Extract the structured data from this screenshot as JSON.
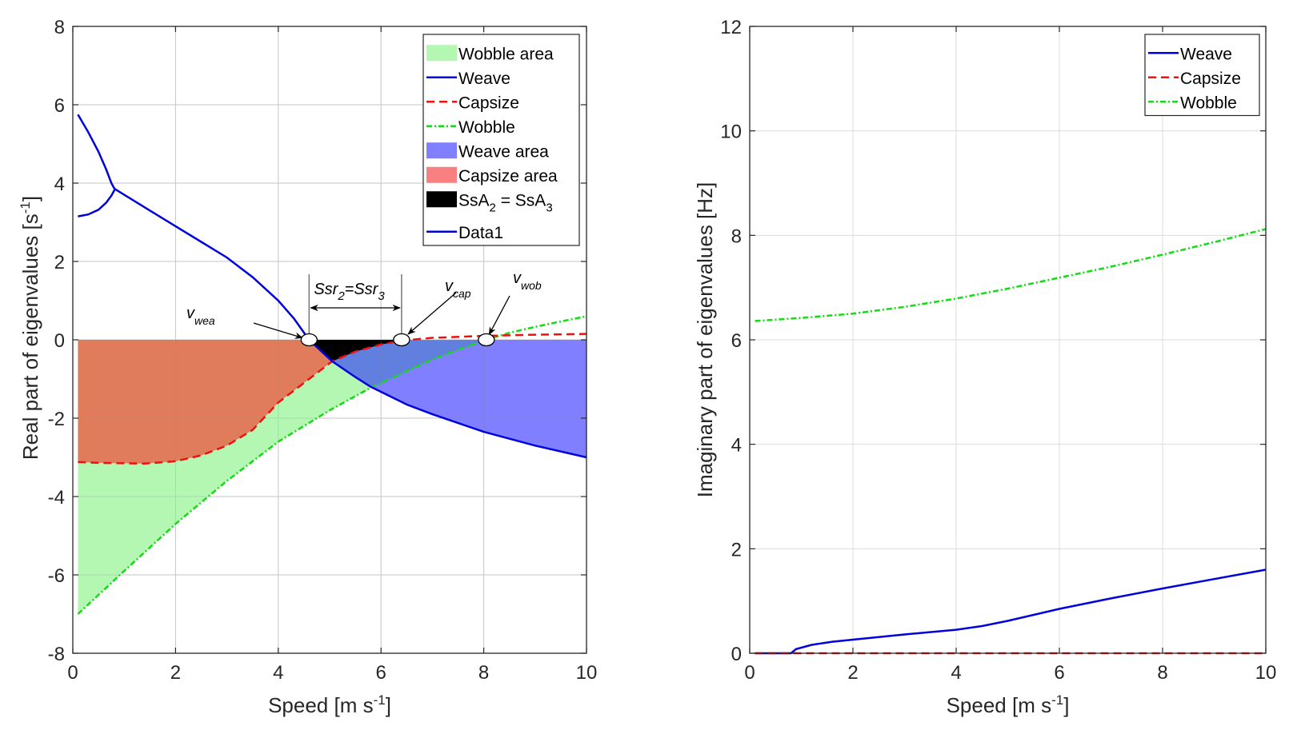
{
  "chart_data": [
    {
      "type": "line",
      "title": "",
      "xlabel": "Speed [m s",
      "xlabel_sup": "-1",
      "xlabel_end": "]",
      "ylabel": "Real part of eigenvalues [s",
      "ylabel_sup": "-1",
      "ylabel_end": "]",
      "xlim": [
        0,
        10
      ],
      "ylim": [
        -8,
        8
      ],
      "xticks": [
        0,
        2,
        4,
        6,
        8,
        10
      ],
      "yticks": [
        -8,
        -6,
        -4,
        -2,
        0,
        2,
        4,
        6,
        8
      ],
      "grid": true,
      "legend_position": "top-right",
      "legend": [
        {
          "label": "Wobble area",
          "kind": "patch",
          "color": "#b3f7b3"
        },
        {
          "label": "Weave",
          "kind": "line",
          "color": "#0000dd",
          "dash": "solid"
        },
        {
          "label": "Capsize",
          "kind": "line",
          "color": "#ee1111",
          "dash": "dashed"
        },
        {
          "label": "Wobble",
          "kind": "line",
          "color": "#11dd11",
          "dash": "dashdot"
        },
        {
          "label": "Weave area",
          "kind": "patch",
          "color": "#7f7fff"
        },
        {
          "label": "Capsize area",
          "kind": "patch",
          "color": "#f88080"
        },
        {
          "label": "SsA",
          "sub": "2",
          "label_mid": " = SsA",
          "sub2": "3",
          "kind": "patch",
          "color": "#000000"
        },
        {
          "label": "Data1",
          "kind": "line",
          "color": "#0000dd",
          "dash": "solid"
        }
      ],
      "series": [
        {
          "name": "Weave",
          "color": "#0000dd",
          "branches": [
            {
              "x": [
                0.1,
                0.3,
                0.5,
                0.65,
                0.75,
                0.8,
                0.82
              ],
              "y": [
                5.75,
                5.3,
                4.8,
                4.35,
                4.0,
                3.88,
                3.85
              ]
            },
            {
              "x": [
                0.1,
                0.3,
                0.5,
                0.65,
                0.75,
                0.8,
                0.82
              ],
              "y": [
                3.15,
                3.2,
                3.32,
                3.5,
                3.68,
                3.8,
                3.85
              ]
            },
            {
              "x": [
                0.82,
                1.5,
                2.0,
                2.5,
                3.0,
                3.5,
                4.0,
                4.3,
                4.6,
                5.05,
                5.5,
                5.8,
                6.5,
                7.0,
                8.0,
                9.0,
                10.0
              ],
              "y": [
                3.85,
                3.3,
                2.9,
                2.5,
                2.1,
                1.6,
                1.0,
                0.55,
                0.0,
                -0.55,
                -0.95,
                -1.2,
                -1.65,
                -1.9,
                -2.35,
                -2.7,
                -3.0
              ]
            }
          ]
        },
        {
          "name": "Capsize",
          "color": "#ee1111",
          "x": [
            0.1,
            0.5,
            1.0,
            1.4,
            2.0,
            2.5,
            3.0,
            3.5,
            4.0,
            4.5,
            5.05,
            5.5,
            6.0,
            6.4,
            7.0,
            8.0,
            9.0,
            10.0
          ],
          "y": [
            -3.12,
            -3.14,
            -3.15,
            -3.16,
            -3.1,
            -2.95,
            -2.7,
            -2.3,
            -1.6,
            -1.1,
            -0.55,
            -0.3,
            -0.12,
            -0.02,
            0.05,
            0.1,
            0.13,
            0.15
          ]
        },
        {
          "name": "Wobble",
          "color": "#11dd11",
          "x": [
            0.1,
            1.0,
            2.0,
            3.0,
            4.0,
            5.0,
            5.8,
            6.5,
            7.0,
            7.5,
            8.05,
            8.5,
            9.0,
            9.5,
            10.0
          ],
          "y": [
            -7.0,
            -5.9,
            -4.7,
            -3.6,
            -2.6,
            -1.8,
            -1.22,
            -0.8,
            -0.5,
            -0.25,
            0.0,
            0.18,
            0.33,
            0.47,
            0.6
          ]
        }
      ],
      "annotations": [
        {
          "text": "v",
          "sub": "wea",
          "point": [
            4.6,
            0
          ]
        },
        {
          "text": "v",
          "sub": "cap",
          "point": [
            6.4,
            0
          ]
        },
        {
          "text": "v",
          "sub": "wob",
          "point": [
            8.05,
            0
          ]
        },
        {
          "text": "Ssr",
          "sub": "2",
          "mid": "=Ssr",
          "sub2": "3",
          "span": [
            4.6,
            6.4
          ]
        }
      ]
    },
    {
      "type": "line",
      "title": "",
      "xlabel": "Speed [m s",
      "xlabel_sup": "-1",
      "xlabel_end": "]",
      "ylabel": "Imaginary part of eigenvalues [Hz]",
      "xlim": [
        0,
        10
      ],
      "ylim": [
        0,
        12
      ],
      "xticks": [
        0,
        2,
        4,
        6,
        8,
        10
      ],
      "yticks": [
        0,
        2,
        4,
        6,
        8,
        10,
        12
      ],
      "grid": true,
      "legend_position": "top-right",
      "legend": [
        {
          "label": "Weave",
          "kind": "line",
          "color": "#0000dd",
          "dash": "solid"
        },
        {
          "label": "Capsize",
          "kind": "line",
          "color": "#ee1111",
          "dash": "dashed"
        },
        {
          "label": "Wobble",
          "kind": "line",
          "color": "#11dd11",
          "dash": "dashdot"
        }
      ],
      "series": [
        {
          "name": "Weave",
          "color": "#0000dd",
          "x": [
            0.1,
            0.8,
            0.9,
            1.2,
            1.6,
            2.0,
            3.0,
            4.0,
            4.5,
            5.0,
            6.0,
            7.0,
            8.0,
            9.0,
            10.0
          ],
          "y": [
            0,
            0,
            0.08,
            0.16,
            0.22,
            0.26,
            0.36,
            0.45,
            0.52,
            0.62,
            0.85,
            1.05,
            1.24,
            1.42,
            1.6
          ]
        },
        {
          "name": "Capsize",
          "color": "#ee1111",
          "x": [
            0.1,
            10.0
          ],
          "y": [
            0,
            0
          ]
        },
        {
          "name": "Wobble",
          "color": "#11dd11",
          "x": [
            0.1,
            1.0,
            2.0,
            3.0,
            4.0,
            5.0,
            6.0,
            7.0,
            8.0,
            9.0,
            10.0
          ],
          "y": [
            6.36,
            6.42,
            6.5,
            6.63,
            6.79,
            6.98,
            7.19,
            7.4,
            7.63,
            7.87,
            8.12
          ]
        }
      ]
    }
  ]
}
